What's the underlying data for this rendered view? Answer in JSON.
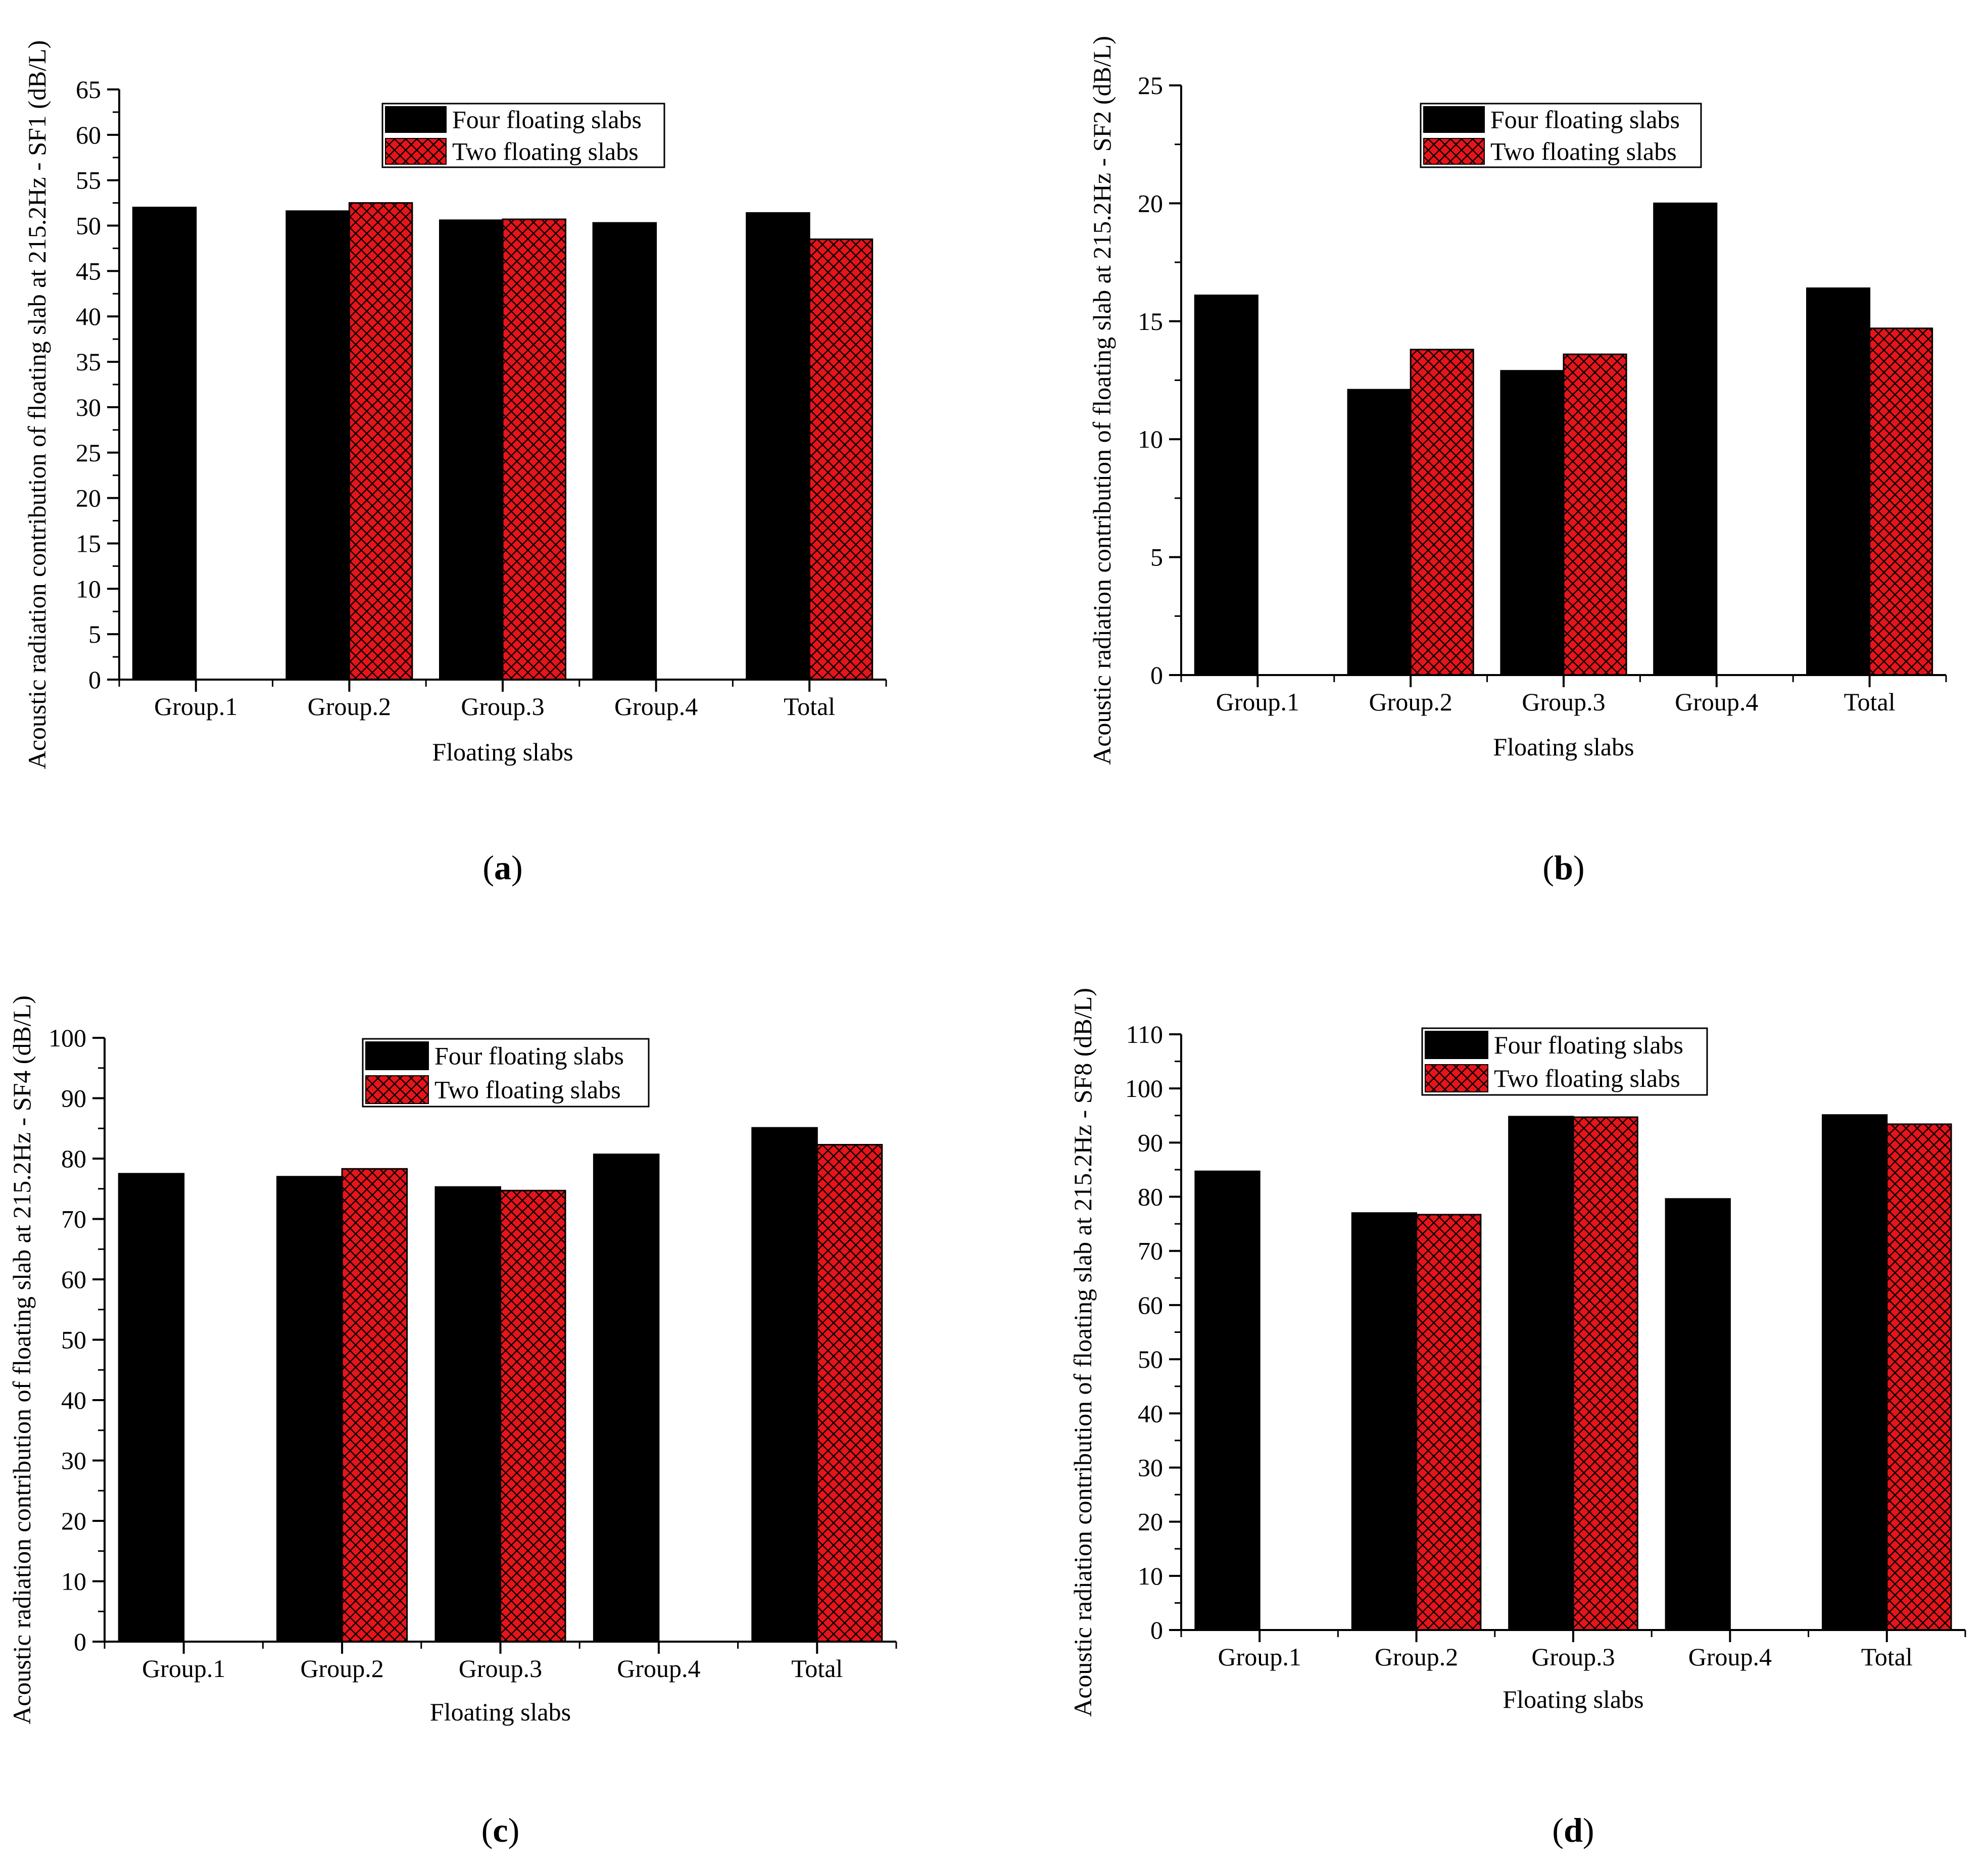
{
  "figure": {
    "background": "#ffffff"
  },
  "colors": {
    "four": "#000000",
    "two_fill": "#e8141b",
    "two_hatch": "#000000",
    "axis": "#000000"
  },
  "chart_data": [
    {
      "id": "a",
      "panel_label": "(a)",
      "type": "bar",
      "categories": [
        "Group.1",
        "Group.2",
        "Group.3",
        "Group.4",
        "Total"
      ],
      "series": [
        {
          "name": "Four floating slabs",
          "values": [
            52.0,
            51.6,
            50.6,
            50.3,
            51.4
          ]
        },
        {
          "name": "Two floating slabs",
          "values": [
            null,
            52.5,
            50.7,
            null,
            48.5
          ]
        }
      ],
      "xlabel": "Floating slabs",
      "ylabel": "Acoustic radiation contribution of floating slab at 215.2Hz - SF1 (dB/L)",
      "ylim": [
        0,
        65
      ],
      "yticks": [
        0,
        5,
        10,
        15,
        20,
        25,
        30,
        35,
        40,
        45,
        50,
        55,
        60,
        65
      ],
      "legend": "top-center"
    },
    {
      "id": "b",
      "panel_label": "(b)",
      "type": "bar",
      "categories": [
        "Group.1",
        "Group.2",
        "Group.3",
        "Group.4",
        "Total"
      ],
      "series": [
        {
          "name": "Four floating slabs",
          "values": [
            16.1,
            12.1,
            12.9,
            20.0,
            16.4
          ]
        },
        {
          "name": "Two floating slabs",
          "values": [
            null,
            13.8,
            13.6,
            null,
            14.7
          ]
        }
      ],
      "xlabel": "Floating slabs",
      "ylabel": "Acoustic radiation contribution of floating slab at 215.2Hz - SF2 (dB/L)",
      "ylim": [
        0,
        25
      ],
      "yticks": [
        0,
        5,
        10,
        15,
        20,
        25
      ],
      "legend": "top-center"
    },
    {
      "id": "c",
      "panel_label": "(c)",
      "type": "bar",
      "categories": [
        "Group.1",
        "Group.2",
        "Group.3",
        "Group.4",
        "Total"
      ],
      "series": [
        {
          "name": "Four floating slabs",
          "values": [
            77.5,
            77.0,
            75.3,
            80.7,
            85.1
          ]
        },
        {
          "name": "Two floating slabs",
          "values": [
            null,
            78.3,
            74.7,
            null,
            82.3
          ]
        }
      ],
      "xlabel": "Floating slabs",
      "ylabel": "Acoustic radiation contribution of floating slab at 215.2Hz - SF4 (dB/L)",
      "ylim": [
        0,
        100
      ],
      "yticks": [
        0,
        10,
        20,
        30,
        40,
        50,
        60,
        70,
        80,
        90,
        100
      ],
      "legend": "top-center"
    },
    {
      "id": "d",
      "panel_label": "(d)",
      "type": "bar",
      "categories": [
        "Group.1",
        "Group.2",
        "Group.3",
        "Group.4",
        "Total"
      ],
      "series": [
        {
          "name": "Four floating slabs",
          "values": [
            84.7,
            77.0,
            94.8,
            79.6,
            95.1
          ]
        },
        {
          "name": "Two floating slabs",
          "values": [
            null,
            76.7,
            94.7,
            null,
            93.4
          ]
        }
      ],
      "xlabel": "Floating slabs",
      "ylabel": "Acoustic radiation contribution of floating slab at 215.2Hz - SF8 (dB/L)",
      "ylim": [
        0,
        110
      ],
      "yticks": [
        0,
        10,
        20,
        30,
        40,
        50,
        60,
        70,
        80,
        90,
        100,
        110
      ],
      "legend": "top-center"
    }
  ]
}
